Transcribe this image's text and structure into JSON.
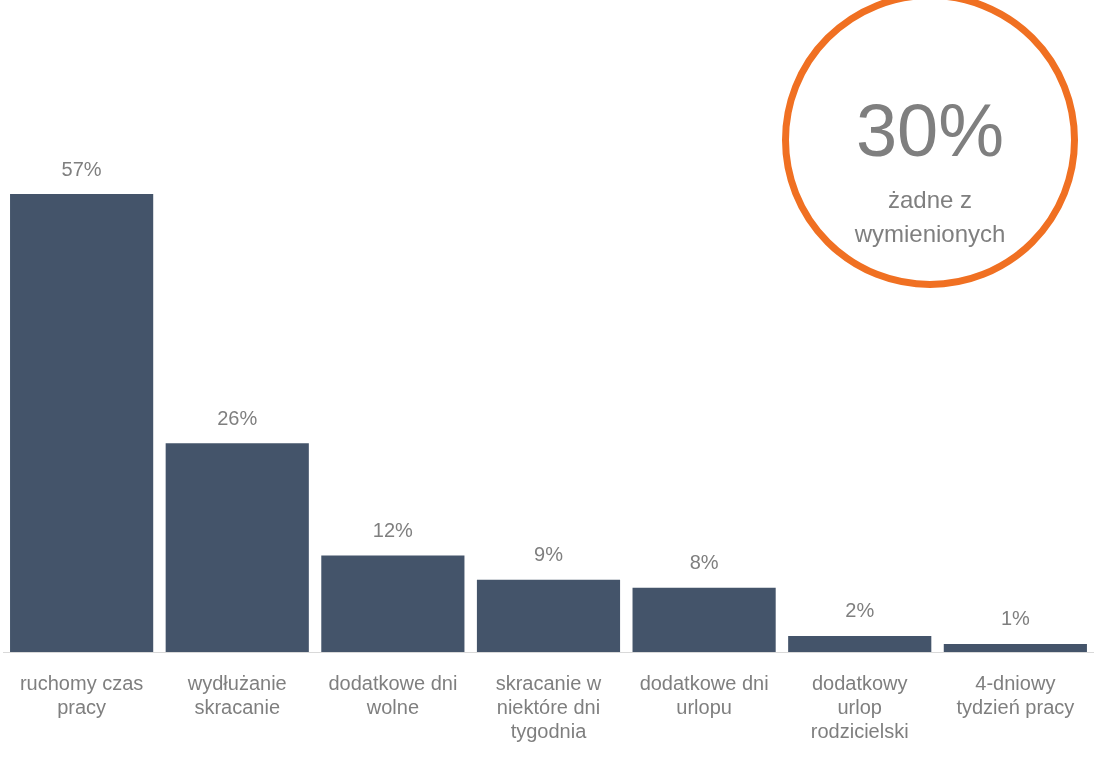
{
  "chart_data": {
    "type": "bar",
    "categories": [
      "ruchomy czas pracy",
      "wydłużanie skracanie",
      "dodatkowe dni wolne",
      "skracanie w niektóre dni tygodnia",
      "dodatkowe dni urlopu",
      "dodatkowy urlop rodzicielski",
      "4-dniowy tydzień pracy"
    ],
    "values": [
      57,
      26,
      12,
      9,
      8,
      2,
      1
    ],
    "value_labels": [
      "57%",
      "26%",
      "12%",
      "9%",
      "8%",
      "2%",
      "1%"
    ],
    "color": "#44546a",
    "annotations": [
      "30%",
      "żadne z wymienionych"
    ],
    "grid": false,
    "legend": false
  }
}
